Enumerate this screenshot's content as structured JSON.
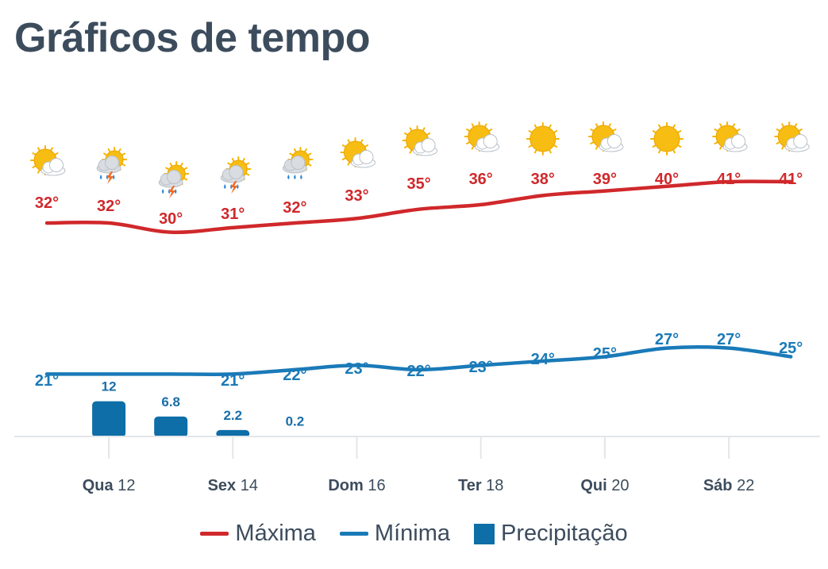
{
  "title": "Gráficos de tempo",
  "colors": {
    "max": "#d0282b",
    "min": "#1a7ab8",
    "precip": "#0d6ea8",
    "text": "#3c4c5d",
    "axis": "#e3e6e9"
  },
  "chart_data": {
    "type": "line",
    "x_labels": [
      {
        "day": "Qua",
        "num": "12"
      },
      {
        "day": "Sex",
        "num": "14"
      },
      {
        "day": "Dom",
        "num": "16"
      },
      {
        "day": "Ter",
        "num": "18"
      },
      {
        "day": "Qui",
        "num": "20"
      },
      {
        "day": "Sáb",
        "num": "22"
      }
    ],
    "icons": [
      "sun-cloud-icon",
      "thunderstorm-icon",
      "thunderstorm-icon",
      "thunderstorm-icon",
      "rain-cloud-icon",
      "sun-cloud-icon",
      "sun-cloud-icon",
      "sun-cloud-icon",
      "sun-icon",
      "sun-cloud-icon",
      "sun-icon",
      "sun-cloud-icon",
      "sun-cloud-icon"
    ],
    "series": [
      {
        "name": "Máxima",
        "values": [
          32,
          32,
          30,
          31,
          32,
          33,
          35,
          36,
          38,
          39,
          40,
          41,
          41
        ],
        "labels": [
          "32°",
          "32°",
          "30°",
          "31°",
          "32°",
          "33°",
          "35°",
          "36°",
          "38°",
          "39°",
          "40°",
          "41°",
          "41°"
        ]
      },
      {
        "name": "Mínima",
        "values": [
          21,
          21,
          21,
          21,
          22,
          23,
          22,
          23,
          24,
          25,
          27,
          27,
          25
        ],
        "labels": [
          "21°",
          "",
          "",
          "21°",
          "22°",
          "23°",
          "22°",
          "23°",
          "24°",
          "25°",
          "27°",
          "27°",
          "25°"
        ]
      },
      {
        "name": "Precipitação",
        "type": "bar",
        "values": [
          null,
          12,
          6.8,
          2.2,
          0.2,
          null,
          null,
          null,
          null,
          null,
          null,
          null,
          null
        ],
        "labels": [
          "",
          "12",
          "6.8",
          "2.2",
          "0.2",
          "",
          "",
          "",
          "",
          "",
          "",
          "",
          ""
        ]
      }
    ]
  },
  "legend": {
    "max": "Máxima",
    "min": "Mínima",
    "precip": "Precipitação"
  }
}
